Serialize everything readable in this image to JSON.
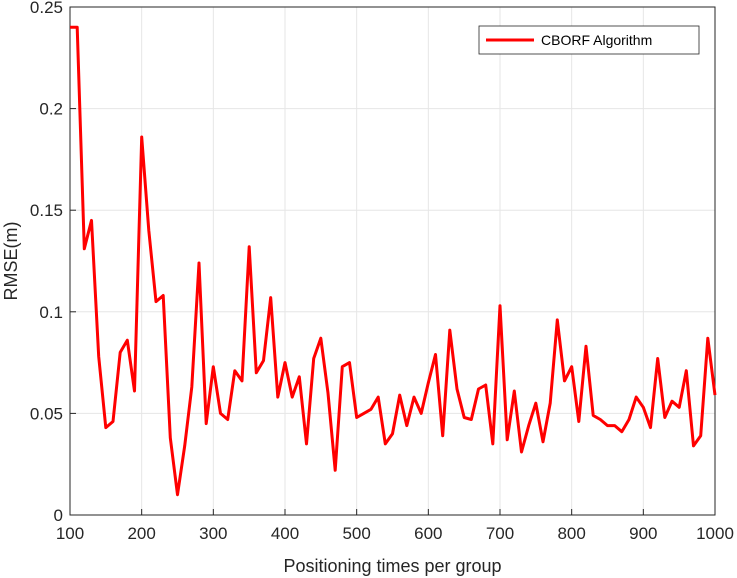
{
  "chart_data": {
    "type": "line",
    "title": "",
    "xlabel": "Positioning times per group",
    "ylabel": "RMSE(m)",
    "xlim": [
      100,
      1000
    ],
    "ylim": [
      0,
      0.25
    ],
    "xticks": [
      100,
      200,
      300,
      400,
      500,
      600,
      700,
      800,
      900,
      1000
    ],
    "yticks": [
      0,
      0.05,
      0.1,
      0.15,
      0.2,
      0.25
    ],
    "xtick_labels": [
      "100",
      "200",
      "300",
      "400",
      "500",
      "600",
      "700",
      "800",
      "900",
      "1000"
    ],
    "ytick_labels": [
      "0",
      "0.05",
      "0.1",
      "0.15",
      "0.2",
      "0.25"
    ],
    "grid": true,
    "legend_position": "top-right",
    "series": [
      {
        "name": "CBORF Algorithm",
        "color": "#ff0000",
        "x": [
          100,
          110,
          120,
          130,
          140,
          150,
          160,
          170,
          180,
          190,
          200,
          210,
          220,
          230,
          240,
          250,
          260,
          270,
          280,
          290,
          300,
          310,
          320,
          330,
          340,
          350,
          360,
          370,
          380,
          390,
          400,
          410,
          420,
          430,
          440,
          450,
          460,
          470,
          480,
          490,
          500,
          510,
          520,
          530,
          540,
          550,
          560,
          570,
          580,
          590,
          600,
          610,
          620,
          630,
          640,
          650,
          660,
          670,
          680,
          690,
          700,
          710,
          720,
          730,
          740,
          750,
          760,
          770,
          780,
          790,
          800,
          810,
          820,
          830,
          840,
          850,
          860,
          870,
          880,
          890,
          900,
          910,
          920,
          930,
          940,
          950,
          960,
          970,
          980,
          990,
          1000
        ],
        "y": [
          0.24,
          0.24,
          0.131,
          0.145,
          0.078,
          0.043,
          0.046,
          0.08,
          0.086,
          0.061,
          0.186,
          0.14,
          0.105,
          0.108,
          0.038,
          0.01,
          0.034,
          0.063,
          0.124,
          0.045,
          0.073,
          0.05,
          0.047,
          0.071,
          0.066,
          0.132,
          0.07,
          0.076,
          0.107,
          0.058,
          0.075,
          0.058,
          0.068,
          0.035,
          0.077,
          0.087,
          0.06,
          0.022,
          0.073,
          0.075,
          0.048,
          0.05,
          0.052,
          0.058,
          0.035,
          0.04,
          0.059,
          0.044,
          0.058,
          0.05,
          0.065,
          0.079,
          0.039,
          0.091,
          0.062,
          0.048,
          0.047,
          0.062,
          0.064,
          0.035,
          0.103,
          0.037,
          0.061,
          0.031,
          0.044,
          0.055,
          0.036,
          0.055,
          0.096,
          0.066,
          0.073,
          0.046,
          0.083,
          0.049,
          0.047,
          0.044,
          0.044,
          0.041,
          0.047,
          0.058,
          0.053,
          0.043,
          0.077,
          0.048,
          0.056,
          0.053,
          0.071,
          0.034,
          0.039,
          0.087,
          0.059
        ]
      }
    ]
  }
}
